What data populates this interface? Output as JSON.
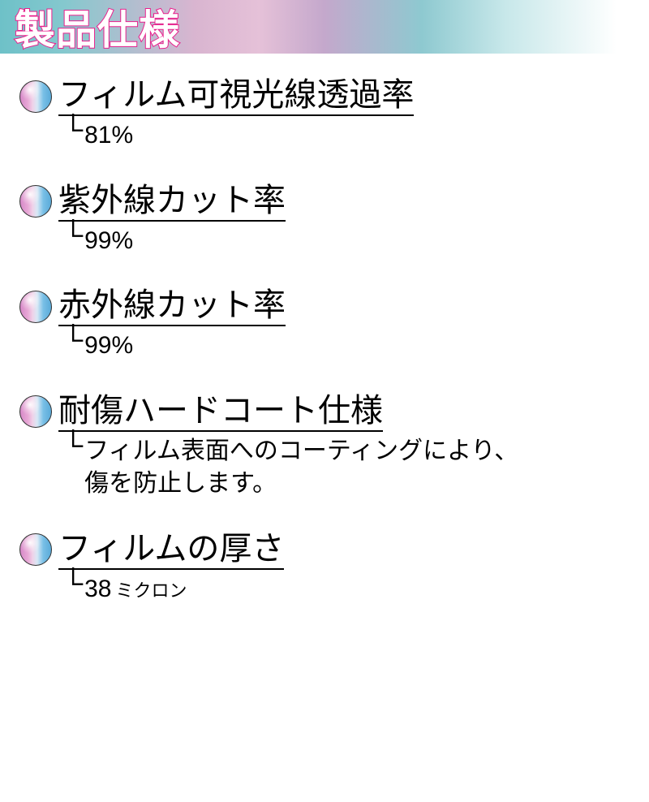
{
  "header": {
    "title": "製品仕様",
    "gradient_colors": [
      "#6ec1c8",
      "#85c8ce",
      "#d9b5d0",
      "#e5c1d8",
      "#c4a8cc",
      "#8ec9d0",
      "#c8e8ea",
      "#ffffff"
    ],
    "title_color": "#ffffff",
    "title_stroke": "#e91e8c",
    "title_fontsize": 50
  },
  "bullet_style": {
    "gradient_colors": [
      "#d689c8",
      "#e8a8d6",
      "#f0d2e8",
      "#d8e8f5",
      "#78bfe6",
      "#5aaad8"
    ],
    "border_color": "#333333",
    "diameter": 40
  },
  "typography": {
    "title_fontsize": 40,
    "value_fontsize": 30,
    "unit_fontsize": 22,
    "text_color": "#000000"
  },
  "specs": [
    {
      "title": "フィルム可視光線透過率",
      "value": "81%",
      "unit": ""
    },
    {
      "title": "紫外線カット率",
      "value": "99%",
      "unit": ""
    },
    {
      "title": "赤外線カット率",
      "value": "99%",
      "unit": ""
    },
    {
      "title": "耐傷ハードコート仕様",
      "value": "フィルム表面へのコーティングにより、\n傷を防止します。",
      "unit": ""
    },
    {
      "title": "フィルムの厚さ",
      "value": "38",
      "unit": "ミクロン"
    }
  ]
}
